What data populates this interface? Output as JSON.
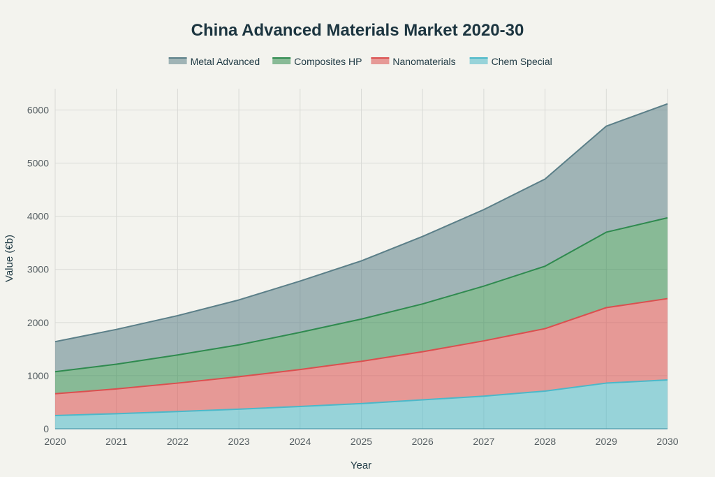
{
  "chart_data": {
    "type": "area",
    "stacked": true,
    "title": "China Advanced Materials Market 2020-30",
    "xlabel": "Year",
    "ylabel": "Value (€b)",
    "x": [
      2020,
      2021,
      2022,
      2023,
      2024,
      2025,
      2026,
      2027,
      2028,
      2029,
      2030
    ],
    "ylim": [
      0,
      6400
    ],
    "yticks": [
      0,
      1000,
      2000,
      3000,
      4000,
      5000,
      6000
    ],
    "grid": true,
    "legend_position": "top-center",
    "series": [
      {
        "name": "Chem Special",
        "color": "#4bb8c9",
        "values": [
          250,
          285,
          325,
          370,
          420,
          475,
          545,
          615,
          710,
          860,
          920
        ]
      },
      {
        "name": "Nanomaterials",
        "color": "#db4f4f",
        "values": [
          410,
          465,
          535,
          610,
          695,
          795,
          905,
          1040,
          1175,
          1420,
          1530
        ]
      },
      {
        "name": "Composites HP",
        "color": "#2f8a4f",
        "values": [
          415,
          465,
          530,
          600,
          700,
          795,
          900,
          1030,
          1175,
          1420,
          1520
        ]
      },
      {
        "name": "Metal Advanced",
        "color": "#5b7f88",
        "values": [
          565,
          655,
          740,
          845,
          965,
          1095,
          1270,
          1440,
          1640,
          1995,
          2145
        ]
      }
    ],
    "legend_order": [
      "Metal Advanced",
      "Composites HP",
      "Nanomaterials",
      "Chem Special"
    ]
  }
}
